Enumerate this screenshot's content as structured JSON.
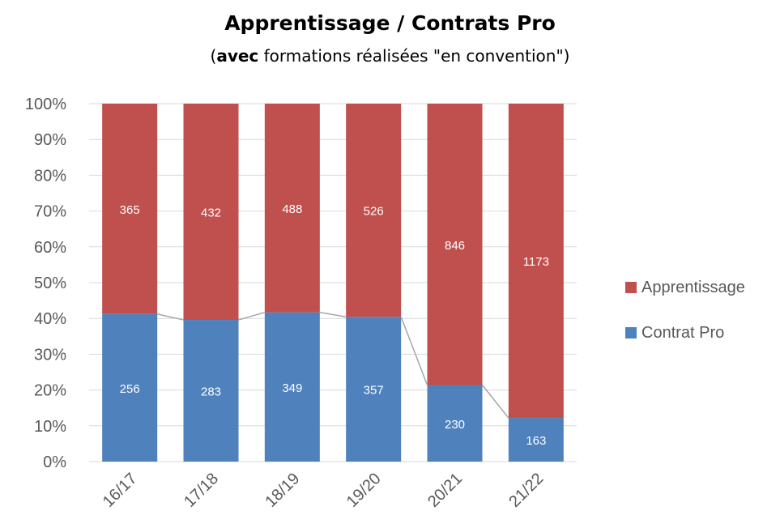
{
  "chart_data": {
    "type": "bar",
    "stacked": "percent",
    "title": "Apprentissage / Contrats Pro",
    "subtitle_bold": "avec",
    "subtitle_rest": " formations réalisées \"en convention\"",
    "categories": [
      "16/17",
      "17/18",
      "18/19",
      "19/20",
      "20/21",
      "21/22"
    ],
    "series": [
      {
        "name": "Contrat Pro",
        "values": [
          256,
          283,
          349,
          357,
          230,
          163
        ],
        "color": "#4f81bd"
      },
      {
        "name": "Apprentissage",
        "values": [
          365,
          432,
          488,
          526,
          846,
          1173
        ],
        "color": "#c0504d"
      }
    ],
    "y_ticks": [
      "0%",
      "10%",
      "20%",
      "30%",
      "40%",
      "50%",
      "60%",
      "70%",
      "80%",
      "90%",
      "100%"
    ],
    "ylim": [
      0,
      100
    ],
    "grid": true,
    "legend_position": "right",
    "connector_line": true,
    "connector_color": "#a6a6a6"
  }
}
